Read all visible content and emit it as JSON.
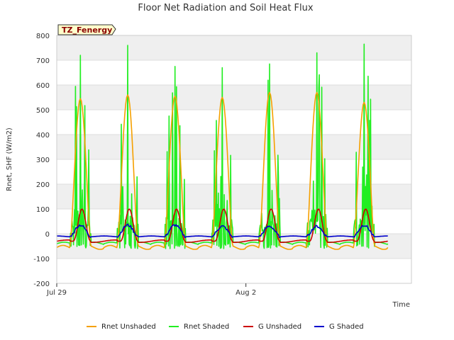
{
  "chart_data": {
    "type": "line",
    "title": "Floor Net Radiation and Soil Heat Flux",
    "xlabel": "Time",
    "ylabel": "Rnet, SHF (W/m2)",
    "site_tag": "TZ_Fenergy",
    "ylim": [
      -200,
      800
    ],
    "yticks": [
      -200,
      -100,
      0,
      100,
      200,
      300,
      400,
      500,
      600,
      700,
      800
    ],
    "xlim": [
      "2024-07-29 00:00",
      "2024-08-05 12:00"
    ],
    "xticks": [
      {
        "label": "Jul 29",
        "value": "2024-07-29"
      },
      {
        "label": "Aug 2",
        "value": "2024-08-02"
      }
    ],
    "grid": true,
    "legend_position": "bottom",
    "days": [
      "Jul 29",
      "Jul 30",
      "Jul 31",
      "Aug 1",
      "Aug 2",
      "Aug 3",
      "Aug 4"
    ],
    "series": [
      {
        "name": "Rnet Unshaded",
        "color": "#f5a000",
        "night_value": -55,
        "peak": [
          545,
          560,
          555,
          550,
          570,
          570,
          530
        ]
      },
      {
        "name": "Rnet Shaded",
        "color": "#22ee22",
        "night_value": -40,
        "peak": [
          720,
          760,
          675,
          670,
          685,
          730,
          765
        ]
      },
      {
        "name": "G Unshaded",
        "color": "#cc0000",
        "night_value": -30,
        "peak": [
          100,
          100,
          100,
          100,
          100,
          100,
          100
        ]
      },
      {
        "name": "G Shaded",
        "color": "#0000cc",
        "night_value": -12,
        "peak": [
          35,
          35,
          35,
          30,
          30,
          30,
          35
        ]
      }
    ]
  }
}
